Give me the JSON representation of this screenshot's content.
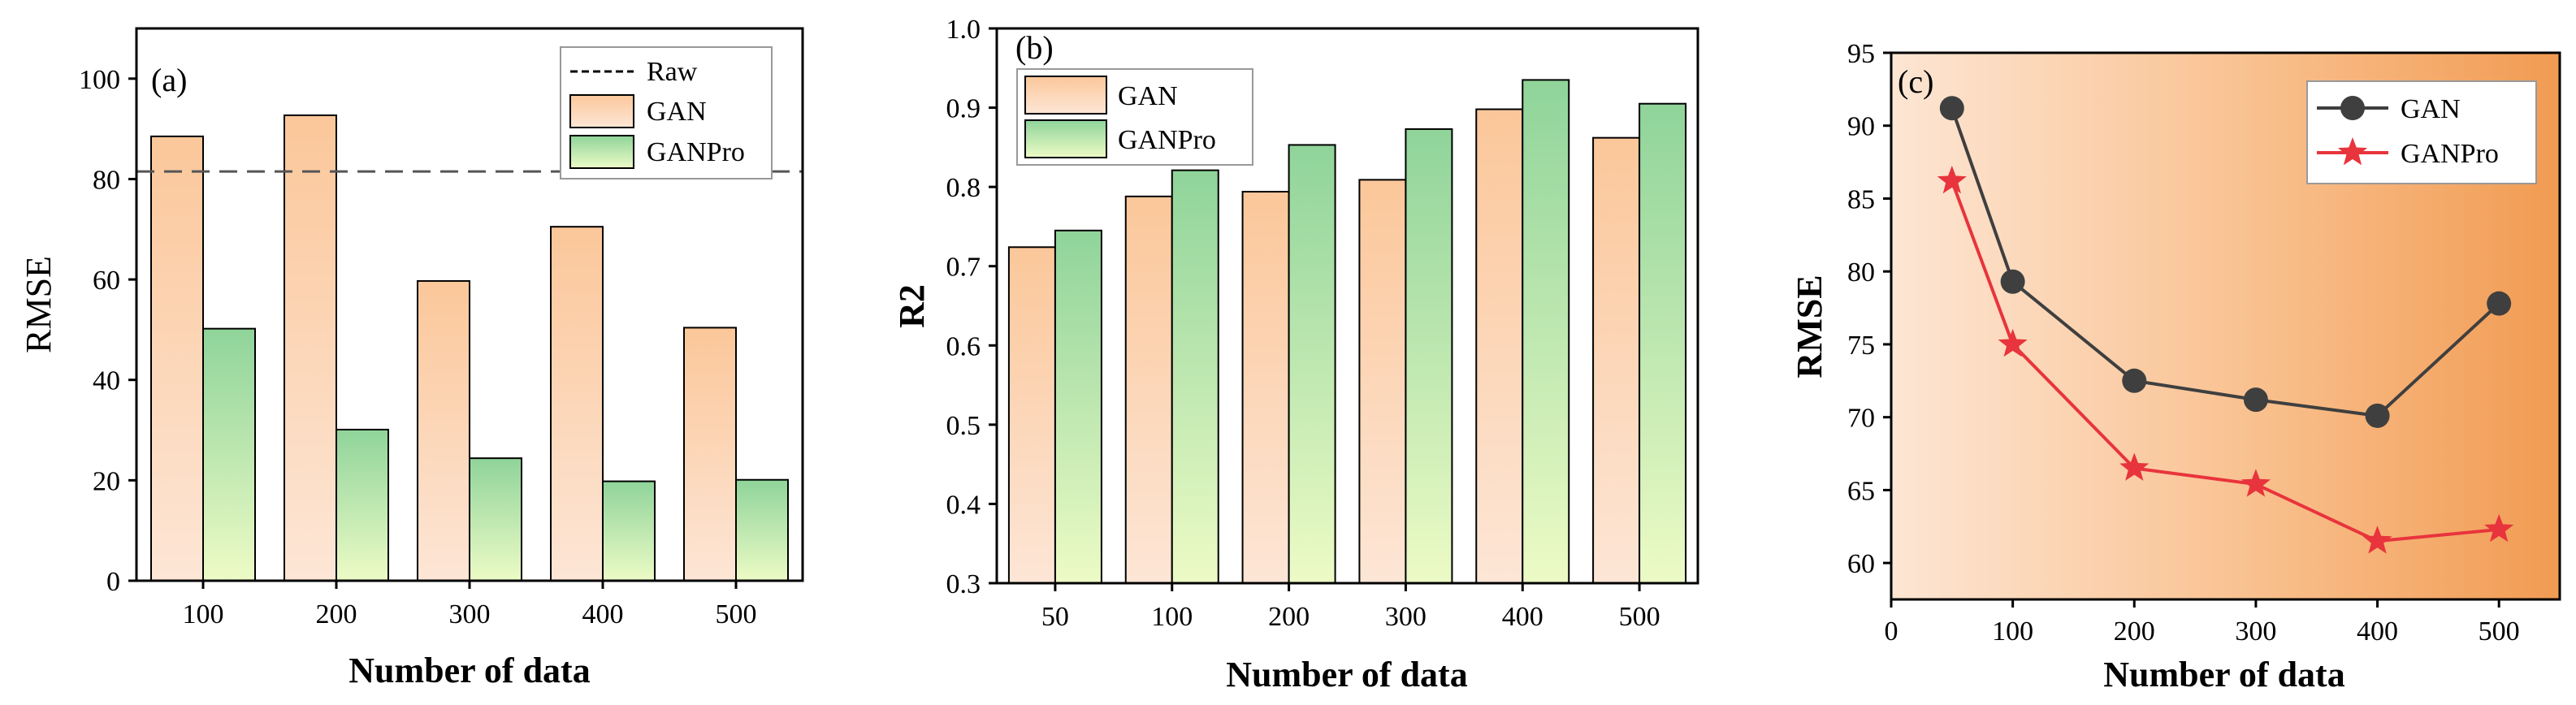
{
  "chart_data": [
    {
      "panel": "(a)",
      "type": "bar",
      "categories": [
        "100",
        "200",
        "300",
        "400",
        "500"
      ],
      "series": [
        {
          "name": "GAN",
          "values": [
            88.5,
            92.7,
            59.7,
            70.5,
            50.4
          ]
        },
        {
          "name": "GANPro",
          "values": [
            50.2,
            30.1,
            24.4,
            19.8,
            20.1
          ]
        }
      ],
      "reference_line": {
        "name": "Raw",
        "value": 81.5,
        "style": "dashed"
      },
      "xlabel": "Number of data",
      "ylabel": "RMSE",
      "ylim": [
        0,
        110
      ],
      "yticks": [
        "0",
        "20",
        "40",
        "60",
        "80",
        "100"
      ],
      "legend": {
        "items": [
          "Raw",
          "GAN",
          "GANPro"
        ],
        "placement": "top-right"
      }
    },
    {
      "panel": "(b)",
      "type": "bar",
      "categories": [
        "50",
        "100",
        "200",
        "300",
        "400",
        "500"
      ],
      "series": [
        {
          "name": "GAN",
          "values": [
            0.724,
            0.788,
            0.794,
            0.809,
            0.898,
            0.862
          ]
        },
        {
          "name": "GANPro",
          "values": [
            0.745,
            0.821,
            0.853,
            0.873,
            0.935,
            0.905
          ]
        }
      ],
      "xlabel": "Number of data",
      "ylabel": "R2",
      "ylim": [
        0.3,
        1.0
      ],
      "yticks": [
        "0.3",
        "0.4",
        "0.5",
        "0.6",
        "0.7",
        "0.8",
        "0.9",
        "1.0"
      ],
      "legend": {
        "items": [
          "GAN",
          "GANPro"
        ],
        "placement": "top-left"
      }
    },
    {
      "panel": "(c)",
      "type": "line",
      "series": [
        {
          "name": "GAN",
          "x": [
            50,
            100,
            200,
            300,
            400,
            500
          ],
          "y": [
            91.2,
            79.3,
            72.5,
            71.2,
            70.1,
            77.8
          ],
          "color": "#3f3f3f",
          "marker": "circle"
        },
        {
          "name": "GANPro",
          "x": [
            50,
            100,
            200,
            300,
            400,
            500
          ],
          "y": [
            86.2,
            75.0,
            66.5,
            65.4,
            61.5,
            62.3
          ],
          "color": "#e8343c",
          "marker": "star"
        }
      ],
      "xlabel": "Number of data",
      "ylabel": "RMSE",
      "xlim": [
        0,
        550
      ],
      "ylim": [
        57.5,
        95
      ],
      "xticks": [
        "0",
        "100",
        "200",
        "300",
        "400",
        "500"
      ],
      "yticks": [
        "60",
        "65",
        "70",
        "75",
        "80",
        "85",
        "90",
        "95"
      ],
      "legend": {
        "items": [
          "GAN",
          "GANPro"
        ],
        "placement": "top-right"
      }
    }
  ]
}
